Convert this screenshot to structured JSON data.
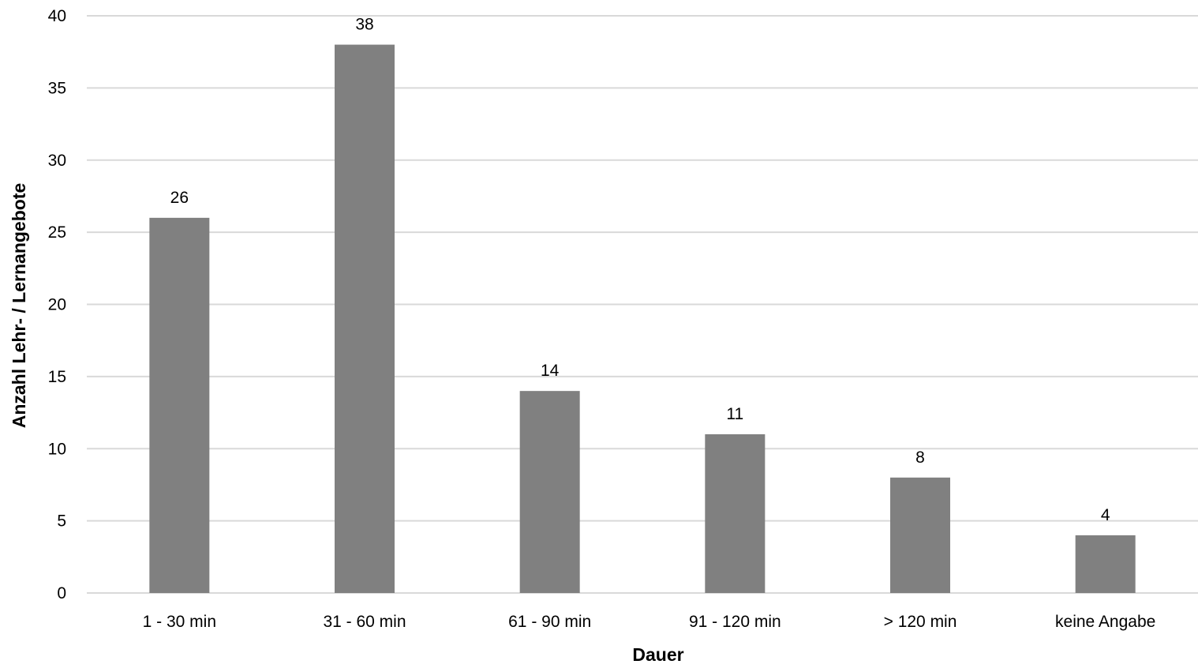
{
  "chart_data": {
    "type": "bar",
    "title": "",
    "categories": [
      "1 - 30 min",
      "31 - 60 min",
      "61 - 90 min",
      "91 - 120 min",
      "> 120 min",
      "keine Angabe"
    ],
    "values": [
      26,
      38,
      14,
      11,
      8,
      4
    ],
    "data_labels": [
      "26",
      "38",
      "14",
      "11",
      "8",
      "4"
    ],
    "xlabel": "Dauer",
    "ylabel": "Anzahl Lehr- / Lernangebote",
    "ylim": [
      0,
      40
    ],
    "yticks": [
      0,
      5,
      10,
      15,
      20,
      25,
      30,
      35,
      40
    ],
    "ytick_labels": [
      "0",
      "5",
      "10",
      "15",
      "20",
      "25",
      "30",
      "35",
      "40"
    ],
    "grid": true,
    "legend": "none",
    "colors": {
      "bar": "#808080",
      "grid": "#d9d9d9",
      "text": "#000000"
    }
  }
}
